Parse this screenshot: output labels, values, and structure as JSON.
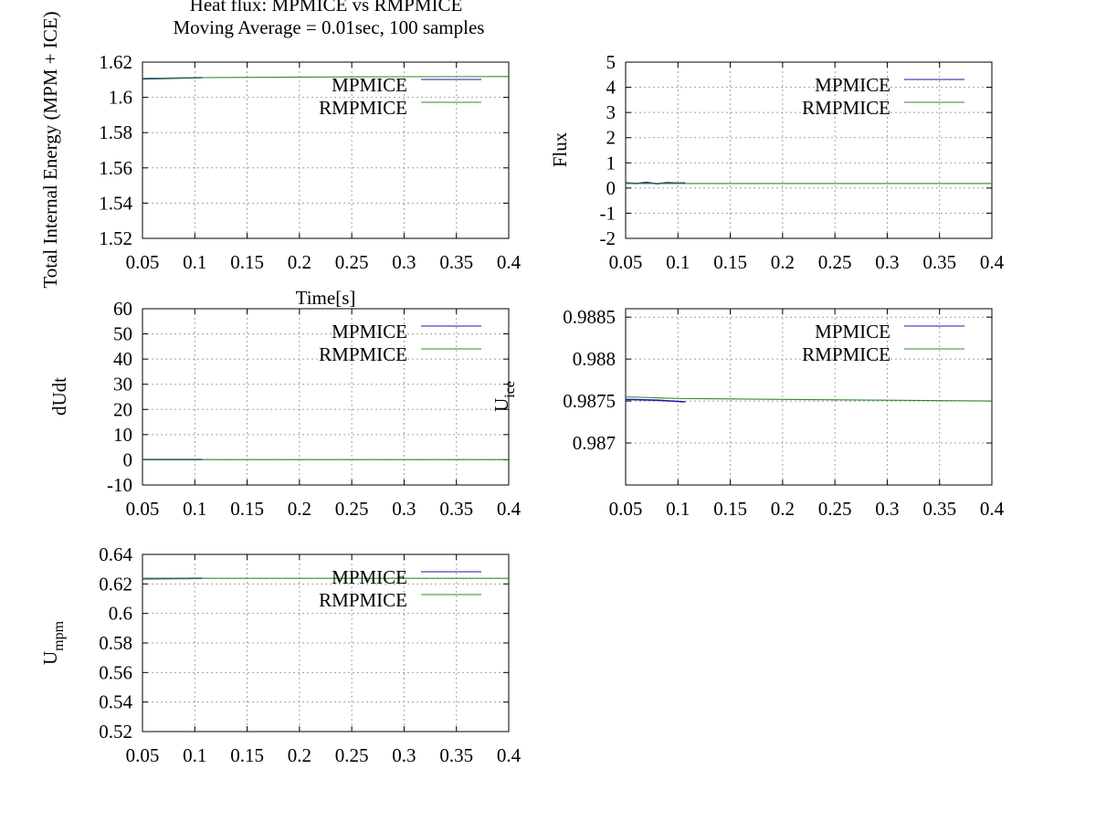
{
  "figure": {
    "title_line1": "Heat flux: MPMICE vs RMPMICE",
    "title_line2": "Moving Average = 0.01sec, 100 samples"
  },
  "chart_data": [
    {
      "id": "energy",
      "type": "line",
      "ylabel": "Total Internal Energy (MPM + ICE)",
      "xlabel": "Time[s]",
      "xlim": [
        0.05,
        0.4
      ],
      "ylim": [
        1.52,
        1.62
      ],
      "xticks": [
        "0.05",
        "0.1",
        "0.15",
        "0.2",
        "0.25",
        "0.3",
        "0.35",
        "0.4"
      ],
      "yticks": [
        "1.52",
        "1.54",
        "1.56",
        "1.58",
        "1.6",
        "1.62"
      ],
      "grid": true,
      "legend": "top-right",
      "series": [
        {
          "name": "MPMICE",
          "color": "#1a1aa0",
          "x": [
            0.05,
            0.107
          ],
          "y": [
            1.6105,
            1.6112
          ]
        },
        {
          "name": "RMPMICE",
          "color": "#2e8b2e",
          "x": [
            0.05,
            0.1,
            0.2,
            0.3,
            0.4
          ],
          "y": [
            1.6108,
            1.6112,
            1.6115,
            1.6117,
            1.6118
          ]
        }
      ]
    },
    {
      "id": "flux",
      "type": "line",
      "ylabel": "Flux",
      "xlabel": "",
      "xlim": [
        0.05,
        0.4
      ],
      "ylim": [
        -2,
        5
      ],
      "xticks": [
        "0.05",
        "0.1",
        "0.15",
        "0.2",
        "0.25",
        "0.3",
        "0.35",
        "0.4"
      ],
      "yticks": [
        "-2",
        "-1",
        "0",
        "1",
        "2",
        "3",
        "4",
        "5"
      ],
      "grid": true,
      "legend": "top-right",
      "series": [
        {
          "name": "MPMICE",
          "color": "#1a1aa0",
          "x": [
            0.05,
            0.06,
            0.07,
            0.08,
            0.09,
            0.1,
            0.107
          ],
          "y": [
            0.2,
            0.18,
            0.22,
            0.17,
            0.21,
            0.19,
            0.2
          ]
        },
        {
          "name": "RMPMICE",
          "color": "#2e8b2e",
          "x": [
            0.05,
            0.4
          ],
          "y": [
            0.18,
            0.18
          ]
        }
      ]
    },
    {
      "id": "dudt",
      "type": "line",
      "ylabel": "dUdt",
      "xlabel": "",
      "xlim": [
        0.05,
        0.4
      ],
      "ylim": [
        -10,
        60
      ],
      "xticks": [
        "0.05",
        "0.1",
        "0.15",
        "0.2",
        "0.25",
        "0.3",
        "0.35",
        "0.4"
      ],
      "yticks": [
        "-10",
        "0",
        "10",
        "20",
        "30",
        "40",
        "50",
        "60"
      ],
      "grid": true,
      "legend": "top-right",
      "series": [
        {
          "name": "MPMICE",
          "color": "#1a1aa0",
          "x": [
            0.05,
            0.107
          ],
          "y": [
            0.1,
            0.1
          ]
        },
        {
          "name": "RMPMICE",
          "color": "#2e8b2e",
          "x": [
            0.05,
            0.4
          ],
          "y": [
            0.1,
            0.1
          ]
        }
      ]
    },
    {
      "id": "uice",
      "type": "line",
      "ylabel": "U",
      "ylabel_sub": "ice",
      "xlabel": "",
      "xlim": [
        0.05,
        0.4
      ],
      "ylim": [
        0.9865,
        0.9886
      ],
      "xticks": [
        "0.05",
        "0.1",
        "0.15",
        "0.2",
        "0.25",
        "0.3",
        "0.35",
        "0.4"
      ],
      "yticks": [
        "0.987",
        "0.9875",
        "0.988",
        "0.9885"
      ],
      "grid": true,
      "legend": "top-right",
      "series": [
        {
          "name": "MPMICE",
          "color": "#1a1aa0",
          "x": [
            0.05,
            0.08,
            0.107
          ],
          "y": [
            0.98752,
            0.98751,
            0.98749
          ]
        },
        {
          "name": "RMPMICE",
          "color": "#2e8b2e",
          "x": [
            0.05,
            0.1,
            0.2,
            0.3,
            0.4
          ],
          "y": [
            0.98755,
            0.98753,
            0.98752,
            0.98751,
            0.9875
          ]
        }
      ]
    },
    {
      "id": "umpm",
      "type": "line",
      "ylabel": "U",
      "ylabel_sub": "mpm",
      "xlabel": "",
      "xlim": [
        0.05,
        0.4
      ],
      "ylim": [
        0.52,
        0.64
      ],
      "xticks": [
        "0.05",
        "0.1",
        "0.15",
        "0.2",
        "0.25",
        "0.3",
        "0.35",
        "0.4"
      ],
      "yticks": [
        "0.52",
        "0.54",
        "0.56",
        "0.58",
        "0.6",
        "0.62",
        "0.64"
      ],
      "grid": true,
      "legend": "top-right",
      "series": [
        {
          "name": "MPMICE",
          "color": "#1a1aa0",
          "x": [
            0.05,
            0.107
          ],
          "y": [
            0.6235,
            0.6238
          ]
        },
        {
          "name": "RMPMICE",
          "color": "#2e8b2e",
          "x": [
            0.05,
            0.2,
            0.4
          ],
          "y": [
            0.6238,
            0.6238,
            0.6238
          ]
        }
      ]
    }
  ]
}
